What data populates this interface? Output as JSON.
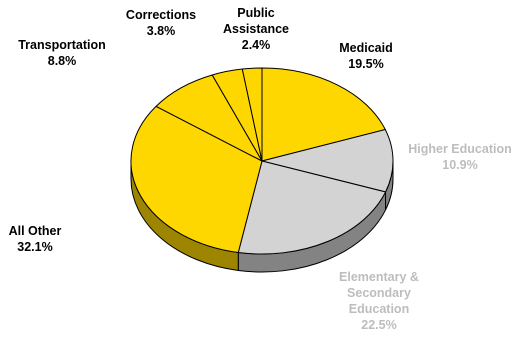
{
  "chart_data": {
    "type": "pie",
    "title": "",
    "unit": "%",
    "style": "3d-tilted",
    "slices": [
      {
        "label": "Medicaid",
        "value": 19.5,
        "value_label": "19.5%",
        "color": "#FFD700",
        "label_color": "#000000"
      },
      {
        "label": "Higher Education",
        "value": 10.9,
        "value_label": "10.9%",
        "color": "#D3D3D3",
        "label_color": "#BDBDBD"
      },
      {
        "label": "Elementary & Secondary Education",
        "value": 22.5,
        "value_label": "22.5%",
        "color": "#D3D3D3",
        "label_color": "#BDBDBD"
      },
      {
        "label": "All Other",
        "value": 32.1,
        "value_label": "32.1%",
        "color": "#FFD700",
        "label_color": "#000000"
      },
      {
        "label": "Transportation",
        "value": 8.8,
        "value_label": "8.8%",
        "color": "#FFD700",
        "label_color": "#000000"
      },
      {
        "label": "Corrections",
        "value": 3.8,
        "value_label": "3.8%",
        "color": "#FFD700",
        "label_color": "#000000"
      },
      {
        "label": "Public Assistance",
        "value": 2.4,
        "value_label": "2.4%",
        "color": "#FFD700",
        "label_color": "#000000"
      }
    ],
    "legend": "none",
    "outline_color": "#000000"
  }
}
